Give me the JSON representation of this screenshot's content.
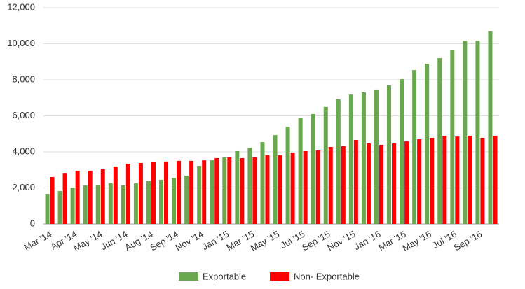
{
  "chart_data": {
    "type": "bar",
    "categories": [
      "Mar '14",
      null,
      "Apr '14",
      null,
      "May '14",
      null,
      "Jun '14",
      null,
      "Aug '14",
      null,
      "Sep '14",
      null,
      "Nov '14",
      null,
      "Jan '15",
      null,
      "Mar '15",
      null,
      "May '15",
      null,
      "Jul '15",
      null,
      "Sep '15",
      null,
      "Nov '15",
      null,
      "Jan '16",
      null,
      "Mar '16",
      null,
      "May '16",
      null,
      "Jul '16",
      null,
      "Sep '16",
      null
    ],
    "series": [
      {
        "name": "Exportable",
        "color": "#6aa84f",
        "values": [
          1670,
          1825,
          2020,
          2135,
          2175,
          2250,
          2135,
          2250,
          2370,
          2450,
          2560,
          2680,
          3220,
          3530,
          3690,
          4040,
          4230,
          4540,
          4930,
          5400,
          5900,
          6100,
          6490,
          6910,
          7180,
          7300,
          7460,
          7690,
          8040,
          8540,
          8890,
          9200,
          9630,
          10170,
          10170,
          10680
        ]
      },
      {
        "name": "Non- Exportable",
        "color": "#ff0000",
        "values": [
          2600,
          2830,
          2950,
          2950,
          3030,
          3180,
          3340,
          3380,
          3420,
          3460,
          3500,
          3500,
          3530,
          3650,
          3690,
          3650,
          3690,
          3810,
          3810,
          3960,
          4040,
          4080,
          4270,
          4310,
          4660,
          4470,
          4390,
          4470,
          4580,
          4700,
          4780,
          4890,
          4850,
          4890,
          4780,
          4890
        ]
      }
    ],
    "ylim": [
      0,
      12000
    ],
    "yticks": [
      0,
      {
        "value": 2000,
        "label": "2,000"
      },
      {
        "value": 4000,
        "label": "4,000"
      },
      {
        "value": 6000,
        "label": "6,000"
      },
      {
        "value": 8000,
        "label": "8,000"
      },
      {
        "value": 10000,
        "label": "10,000"
      },
      {
        "value": 12000,
        "label": "12,000"
      }
    ],
    "grid": true,
    "legend": "bottom"
  }
}
